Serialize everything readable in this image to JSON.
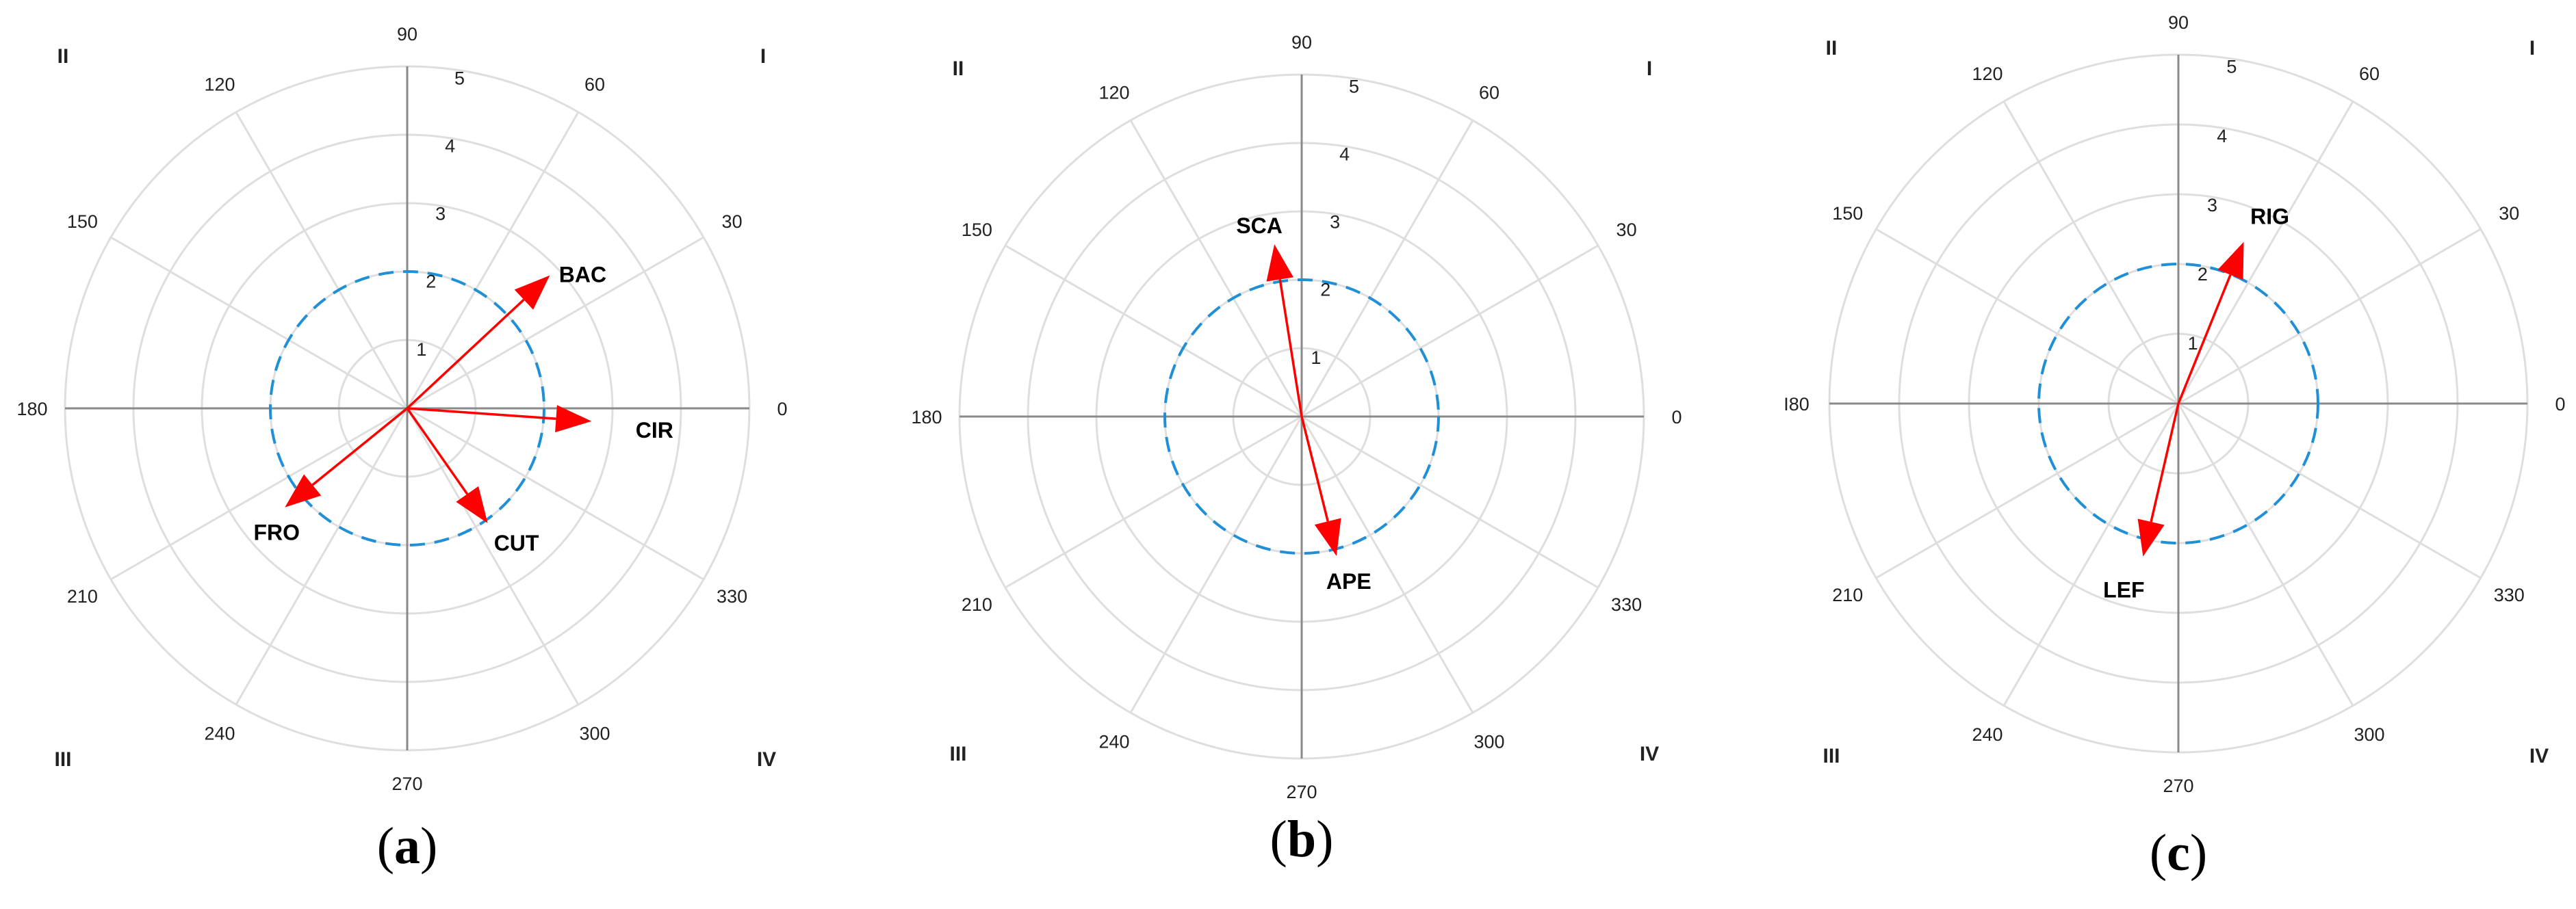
{
  "chart_data": [
    {
      "type": "polar-vector",
      "caption": "a",
      "angle_ticks": [
        "0",
        "30",
        "60",
        "90",
        "120",
        "150",
        "180",
        "210",
        "240",
        "270",
        "300",
        "330"
      ],
      "radial_ticks": [
        "1",
        "2",
        "3",
        "4",
        "5"
      ],
      "rlim": [
        0,
        5
      ],
      "reference_circle_radius": 2,
      "quadrant_labels": [
        "I",
        "II",
        "III",
        "IV"
      ],
      "vectors": [
        {
          "label": "BAC",
          "angle": 43,
          "magnitude": 2.85
        },
        {
          "label": "CIR",
          "angle": -4,
          "magnitude": 2.7
        },
        {
          "label": "CUT",
          "angle": -55,
          "magnitude": 2.05
        },
        {
          "label": "FRO",
          "angle": 219,
          "magnitude": 2.3
        }
      ]
    },
    {
      "type": "polar-vector",
      "caption": "b",
      "angle_ticks": [
        "0",
        "30",
        "60",
        "90",
        "120",
        "150",
        "180",
        "210",
        "240",
        "270",
        "300",
        "330"
      ],
      "radial_ticks": [
        "1",
        "2",
        "3",
        "4",
        "5"
      ],
      "rlim": [
        0,
        5
      ],
      "reference_circle_radius": 2,
      "quadrant_labels": [
        "I",
        "II",
        "III",
        "IV"
      ],
      "vectors": [
        {
          "label": "SCA",
          "angle": 99,
          "magnitude": 2.55
        },
        {
          "label": "APE",
          "angle": -76,
          "magnitude": 2.1
        }
      ]
    },
    {
      "type": "polar-vector",
      "caption": "c",
      "angle_ticks": [
        "0",
        "30",
        "60",
        "90",
        "120",
        "150",
        "I80",
        "210",
        "240",
        "270",
        "300",
        "330"
      ],
      "radial_ticks": [
        "1",
        "2",
        "3",
        "4",
        "5"
      ],
      "rlim": [
        0,
        5
      ],
      "reference_circle_radius": 2,
      "quadrant_labels": [
        "I",
        "II",
        "III",
        "IV"
      ],
      "vectors": [
        {
          "label": "RIG",
          "angle": 68,
          "magnitude": 2.5
        },
        {
          "label": "LEF",
          "angle": 257,
          "magnitude": 2.25
        }
      ]
    }
  ],
  "colors": {
    "vector": "#ff0000",
    "reference_circle": "#1f8fd6",
    "grid": "#dedede",
    "axis": "#8a8a8a"
  }
}
